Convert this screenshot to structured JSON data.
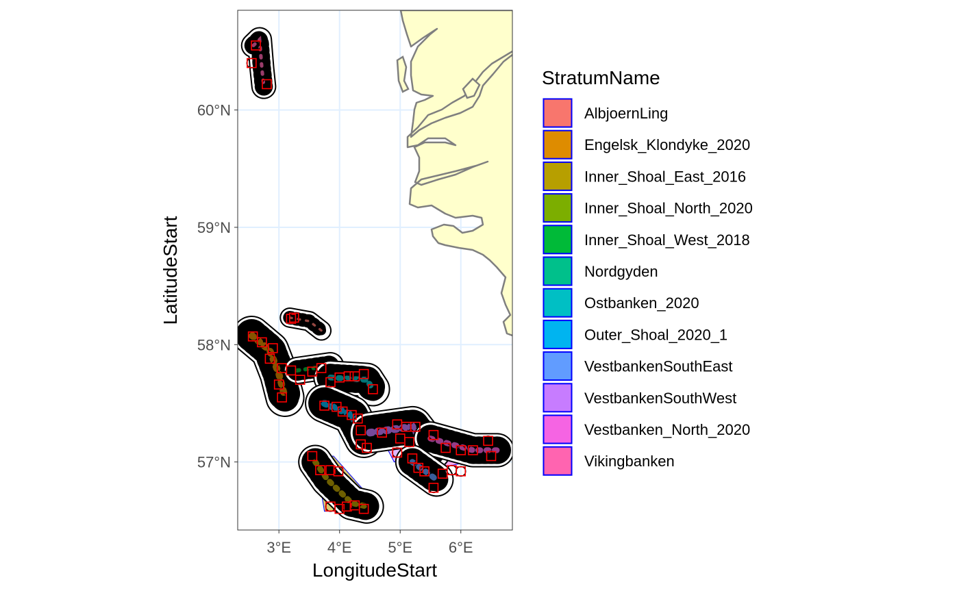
{
  "chart_data": {
    "type": "scatter",
    "xlabel": "LongitudeStart",
    "ylabel": "LatitudeStart",
    "xlim": [
      2.32,
      6.85
    ],
    "ylim": [
      56.42,
      60.85
    ],
    "x_ticks": [
      {
        "value": 3,
        "label": "3°E"
      },
      {
        "value": 4,
        "label": "4°E"
      },
      {
        "value": 5,
        "label": "5°E"
      },
      {
        "value": 6,
        "label": "6°E"
      }
    ],
    "y_ticks": [
      {
        "value": 57,
        "label": "57°N"
      },
      {
        "value": 58,
        "label": "58°N"
      },
      {
        "value": 59,
        "label": "59°N"
      },
      {
        "value": 60,
        "label": "60°N"
      }
    ],
    "grid": true,
    "land_color": "#ffffcc",
    "coast_color": "#7f7f7f",
    "gridline_color": "#e0efff",
    "legend": {
      "title": "StratumName",
      "placement": "right",
      "items": [
        {
          "label": "AlbjoernLing",
          "color": "#F8766D"
        },
        {
          "label": "Engelsk_Klondyke_2020",
          "color": "#DE8C00"
        },
        {
          "label": "Inner_Shoal_East_2016",
          "color": "#B79F00"
        },
        {
          "label": "Inner_Shoal_North_2020",
          "color": "#7CAE00"
        },
        {
          "label": "Inner_Shoal_West_2018",
          "color": "#00BA38"
        },
        {
          "label": "Nordgyden",
          "color": "#00C08B"
        },
        {
          "label": "Ostbanken_2020",
          "color": "#00BFC4"
        },
        {
          "label": "Outer_Shoal_2020_1",
          "color": "#00B4F0"
        },
        {
          "label": "VestbankenSouthEast",
          "color": "#619CFF"
        },
        {
          "label": "VestbankenSouthWest",
          "color": "#C77CFF"
        },
        {
          "label": "Vestbanken_North_2020",
          "color": "#F564E3"
        },
        {
          "label": "Vikingbanken",
          "color": "#FF64B0"
        }
      ]
    },
    "strata": [
      {
        "name": "Vikingbanken",
        "polygon": [
          [
            2.55,
            60.55
          ],
          [
            2.75,
            60.68
          ],
          [
            2.82,
            60.2
          ],
          [
            2.62,
            60.15
          ]
        ]
      },
      {
        "name": "AlbjoernLing",
        "polygon": [
          [
            3.15,
            58.25
          ],
          [
            3.6,
            58.2
          ],
          [
            3.75,
            58.1
          ],
          [
            3.2,
            58.18
          ]
        ]
      },
      {
        "name": "Engelsk_Klondyke_2020",
        "polygon": [
          [
            2.52,
            58.1
          ],
          [
            2.95,
            58.0
          ],
          [
            3.2,
            57.8
          ],
          [
            3.3,
            57.5
          ],
          [
            3.0,
            57.6
          ],
          [
            2.7,
            57.95
          ]
        ]
      },
      {
        "name": "Inner_Shoal_West_2018",
        "polygon": [
          [
            3.35,
            57.82
          ],
          [
            3.85,
            57.85
          ],
          [
            3.95,
            57.75
          ],
          [
            3.5,
            57.68
          ]
        ]
      },
      {
        "name": "Ostbanken_2020",
        "polygon": [
          [
            3.9,
            57.8
          ],
          [
            4.55,
            57.7
          ],
          [
            4.5,
            57.55
          ],
          [
            3.95,
            57.6
          ]
        ]
      },
      {
        "name": "Outer_Shoal_2020_1",
        "polygon": [
          [
            3.7,
            57.5
          ],
          [
            4.4,
            57.45
          ],
          [
            4.55,
            57.1
          ],
          [
            3.9,
            57.35
          ]
        ]
      },
      {
        "name": "Inner_Shoal_East_2016",
        "polygon": [
          [
            3.6,
            57.05
          ],
          [
            3.9,
            57.05
          ],
          [
            4.5,
            56.7
          ],
          [
            4.5,
            56.58
          ],
          [
            3.75,
            56.58
          ]
        ]
      },
      {
        "name": "VestbankenSouthWest",
        "polygon": [
          [
            4.6,
            57.3
          ],
          [
            5.3,
            57.4
          ],
          [
            5.5,
            57.15
          ],
          [
            4.9,
            57.0
          ]
        ]
      },
      {
        "name": "VestbankenSouthEast",
        "polygon": [
          [
            5.2,
            57.3
          ],
          [
            5.7,
            57.2
          ],
          [
            5.75,
            56.9
          ],
          [
            5.3,
            56.95
          ]
        ]
      },
      {
        "name": "Vestbanken_North_2020",
        "polygon": [
          [
            5.6,
            57.2
          ],
          [
            6.65,
            57.15
          ],
          [
            6.6,
            57.05
          ],
          [
            5.65,
            56.95
          ]
        ]
      }
    ],
    "survey_clusters": [
      {
        "name": "Vikingbanken",
        "centerline": [
          [
            2.58,
            60.55
          ],
          [
            2.68,
            60.6
          ],
          [
            2.72,
            60.35
          ],
          [
            2.75,
            60.2
          ]
        ],
        "half_width": 0.06
      },
      {
        "name": "AlbjoernLing",
        "centerline": [
          [
            3.18,
            58.23
          ],
          [
            3.5,
            58.2
          ],
          [
            3.7,
            58.12
          ]
        ],
        "half_width": 0.04
      },
      {
        "name": "Engelsk_Klondyke_2020",
        "centerline": [
          [
            2.55,
            58.08
          ],
          [
            2.85,
            57.95
          ],
          [
            3.0,
            57.75
          ],
          [
            3.1,
            57.55
          ]
        ],
        "half_width": 0.12
      },
      {
        "name": "Inner_Shoal_West_2018",
        "centerline": [
          [
            3.3,
            57.78
          ],
          [
            3.85,
            57.82
          ]
        ],
        "half_width": 0.07
      },
      {
        "name": "Ostbanken_2020",
        "centerline": [
          [
            3.85,
            57.72
          ],
          [
            4.45,
            57.7
          ],
          [
            4.55,
            57.62
          ]
        ],
        "half_width": 0.1
      },
      {
        "name": "Outer_Shoal_2020_1",
        "centerline": [
          [
            3.75,
            57.5
          ],
          [
            4.2,
            57.4
          ],
          [
            4.4,
            57.2
          ]
        ],
        "half_width": 0.12
      },
      {
        "name": "VestbankenSouthWest",
        "centerline": [
          [
            4.5,
            57.25
          ],
          [
            5.2,
            57.3
          ],
          [
            5.5,
            57.1
          ]
        ],
        "half_width": 0.13
      },
      {
        "name": "Vestbanken_North_2020",
        "centerline": [
          [
            5.5,
            57.2
          ],
          [
            6.2,
            57.1
          ],
          [
            6.6,
            57.1
          ]
        ],
        "half_width": 0.1
      },
      {
        "name": "VestbankenSouthEast",
        "centerline": [
          [
            5.2,
            57.0
          ],
          [
            5.6,
            56.85
          ]
        ],
        "half_width": 0.1
      },
      {
        "name": "Inner_Shoal_East_2016",
        "centerline": [
          [
            3.6,
            57.0
          ],
          [
            3.8,
            56.85
          ],
          [
            4.2,
            56.65
          ],
          [
            4.45,
            56.62
          ]
        ],
        "half_width": 0.1
      }
    ],
    "stations": [
      [
        2.62,
        60.55
      ],
      [
        2.55,
        60.4
      ],
      [
        2.8,
        60.22
      ],
      [
        3.2,
        58.22
      ],
      [
        3.25,
        58.23
      ],
      [
        2.57,
        58.07
      ],
      [
        2.72,
        58.02
      ],
      [
        2.9,
        57.97
      ],
      [
        2.85,
        57.88
      ],
      [
        3.05,
        57.8
      ],
      [
        3.2,
        57.78
      ],
      [
        3.0,
        57.66
      ],
      [
        3.05,
        57.55
      ],
      [
        3.35,
        57.7
      ],
      [
        3.55,
        57.77
      ],
      [
        3.7,
        57.8
      ],
      [
        3.85,
        57.68
      ],
      [
        4.0,
        57.72
      ],
      [
        4.15,
        57.73
      ],
      [
        4.25,
        57.73
      ],
      [
        4.4,
        57.75
      ],
      [
        4.55,
        57.62
      ],
      [
        3.75,
        57.48
      ],
      [
        3.95,
        57.47
      ],
      [
        4.05,
        57.43
      ],
      [
        4.2,
        57.4
      ],
      [
        4.3,
        57.37
      ],
      [
        4.35,
        57.27
      ],
      [
        4.35,
        57.15
      ],
      [
        4.45,
        57.12
      ],
      [
        4.7,
        57.25
      ],
      [
        4.95,
        57.32
      ],
      [
        5.1,
        57.3
      ],
      [
        5.25,
        57.3
      ],
      [
        5.0,
        57.2
      ],
      [
        5.15,
        57.17
      ],
      [
        4.95,
        57.08
      ],
      [
        5.55,
        57.23
      ],
      [
        5.75,
        57.12
      ],
      [
        6.0,
        57.1
      ],
      [
        6.2,
        57.1
      ],
      [
        6.45,
        57.18
      ],
      [
        6.5,
        57.05
      ],
      [
        5.2,
        57.03
      ],
      [
        5.3,
        56.95
      ],
      [
        5.4,
        56.92
      ],
      [
        5.7,
        56.9
      ],
      [
        5.85,
        56.93
      ],
      [
        6.0,
        56.92
      ],
      [
        5.55,
        56.78
      ],
      [
        3.55,
        57.05
      ],
      [
        3.68,
        56.93
      ],
      [
        3.85,
        56.93
      ],
      [
        3.98,
        56.92
      ],
      [
        3.85,
        56.62
      ],
      [
        4.0,
        56.6
      ],
      [
        4.12,
        56.62
      ],
      [
        4.25,
        56.63
      ],
      [
        4.4,
        56.6
      ]
    ],
    "series": [
      {
        "values": "stations",
        "marker": "open-circle",
        "color": "#000000"
      },
      {
        "values": "stations",
        "marker": "open-square",
        "color": "#ff0000"
      }
    ]
  }
}
